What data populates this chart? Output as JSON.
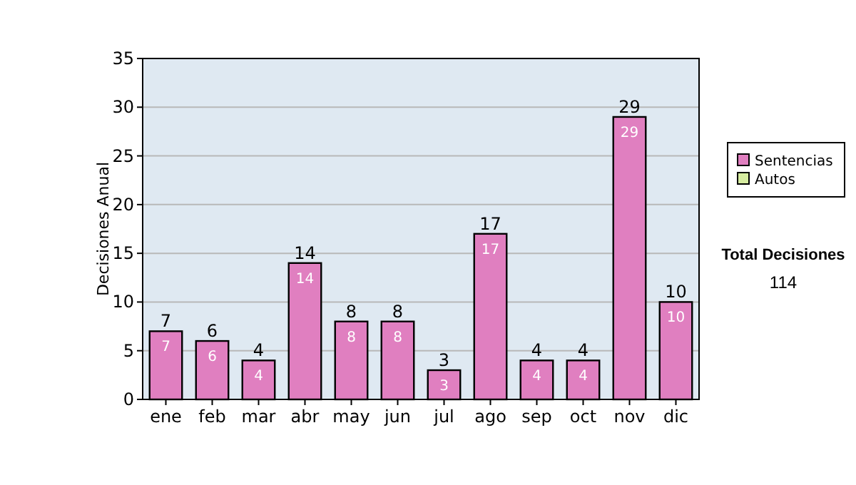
{
  "chart_data": {
    "type": "bar",
    "ylabel": "Decisiones Anual",
    "categories": [
      "ene",
      "feb",
      "mar",
      "abr",
      "may",
      "jun",
      "jul",
      "ago",
      "sep",
      "oct",
      "nov",
      "dic"
    ],
    "series": [
      {
        "name": "Sentencias",
        "color": "#e07fc0",
        "values": [
          7,
          6,
          4,
          14,
          8,
          8,
          3,
          17,
          4,
          4,
          29,
          10
        ],
        "value_labels": [
          "7",
          "6",
          "4",
          "14",
          "8",
          "8",
          "3",
          "17",
          "4",
          "4",
          "29",
          "10"
        ]
      },
      {
        "name": "Autos",
        "color": "#d6eca0",
        "values": [
          null,
          null,
          null,
          null,
          null,
          null,
          null,
          null,
          null,
          null,
          null,
          null
        ]
      }
    ],
    "totals": [
      "7",
      "6",
      "4",
      "14",
      "8",
      "8",
      "3",
      "17",
      "4",
      "4",
      "29",
      "10"
    ],
    "ylim": [
      0,
      35
    ],
    "yticks": [
      0,
      5,
      10,
      15,
      20,
      25,
      30,
      35
    ],
    "grid": "y",
    "legend": "right",
    "annotations": [
      "Total Decisiones",
      "114"
    ]
  }
}
